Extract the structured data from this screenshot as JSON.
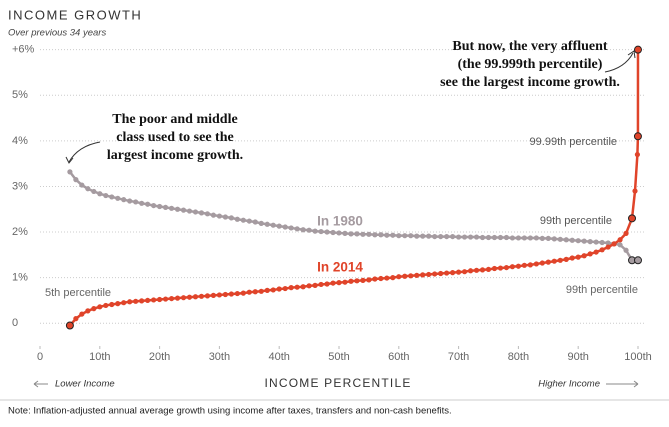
{
  "chart_data": {
    "type": "line",
    "title": "INCOME GROWTH",
    "subtitle": "Over previous 34 years",
    "x_label": "INCOME PERCENTILE",
    "x_left_note": "Lower Income",
    "x_right_note": "Higher Income",
    "note": "Note: Inflation-adjusted annual average growth using income after taxes, transfers and non-cash benefits.",
    "xlim": [
      0,
      100
    ],
    "ylim": [
      -0.5,
      6.3
    ],
    "xticks": [
      0,
      {
        "value": 10,
        "label": "10th"
      },
      {
        "value": 20,
        "label": "20th"
      },
      {
        "value": 30,
        "label": "30th"
      },
      {
        "value": 40,
        "label": "40th"
      },
      {
        "value": 50,
        "label": "50th"
      },
      {
        "value": 60,
        "label": "60th"
      },
      {
        "value": 70,
        "label": "70th"
      },
      {
        "value": 80,
        "label": "80th"
      },
      {
        "value": 90,
        "label": "90th"
      },
      {
        "value": 100,
        "label": "100th"
      }
    ],
    "yticks": [
      0,
      {
        "value": 1,
        "label": "1%"
      },
      {
        "value": 2,
        "label": "2%"
      },
      {
        "value": 3,
        "label": "3%"
      },
      {
        "value": 4,
        "label": "4%"
      },
      {
        "value": 5,
        "label": "5%"
      },
      {
        "value": 6,
        "label": "+6%"
      }
    ],
    "grid": true,
    "x": [
      5,
      6,
      7,
      8,
      9,
      10,
      11,
      12,
      13,
      14,
      15,
      16,
      17,
      18,
      19,
      20,
      21,
      22,
      23,
      24,
      25,
      26,
      27,
      28,
      29,
      30,
      31,
      32,
      33,
      34,
      35,
      36,
      37,
      38,
      39,
      40,
      41,
      42,
      43,
      44,
      45,
      46,
      47,
      48,
      49,
      50,
      51,
      52,
      53,
      54,
      55,
      56,
      57,
      58,
      59,
      60,
      61,
      62,
      63,
      64,
      65,
      66,
      67,
      68,
      69,
      70,
      71,
      72,
      73,
      74,
      75,
      76,
      77,
      78,
      79,
      80,
      81,
      82,
      83,
      84,
      85,
      86,
      87,
      88,
      89,
      90,
      91,
      92,
      93,
      94,
      95,
      96,
      97,
      98,
      99,
      99.5,
      99.9,
      99.99,
      99.999
    ],
    "series": [
      {
        "name": "In 1980",
        "color": "#a59ba0",
        "values": [
          3.32,
          3.15,
          3.03,
          2.95,
          2.89,
          2.84,
          2.8,
          2.77,
          2.74,
          2.71,
          2.68,
          2.66,
          2.63,
          2.61,
          2.58,
          2.56,
          2.54,
          2.52,
          2.5,
          2.48,
          2.46,
          2.44,
          2.42,
          2.4,
          2.37,
          2.35,
          2.33,
          2.31,
          2.28,
          2.26,
          2.24,
          2.22,
          2.19,
          2.17,
          2.15,
          2.13,
          2.11,
          2.09,
          2.07,
          2.05,
          2.04,
          2.02,
          2.01,
          2.0,
          1.99,
          1.98,
          1.97,
          1.96,
          1.96,
          1.95,
          1.95,
          1.94,
          1.94,
          1.93,
          1.93,
          1.92,
          1.92,
          1.92,
          1.91,
          1.91,
          1.91,
          1.9,
          1.9,
          1.9,
          1.9,
          1.89,
          1.89,
          1.89,
          1.89,
          1.88,
          1.88,
          1.88,
          1.88,
          1.88,
          1.87,
          1.87,
          1.87,
          1.87,
          1.87,
          1.86,
          1.86,
          1.85,
          1.84,
          1.83,
          1.82,
          1.81,
          1.8,
          1.79,
          1.78,
          1.77,
          1.76,
          1.74,
          1.72,
          1.6,
          1.38,
          null,
          null,
          null,
          1.38
        ]
      },
      {
        "name": "In 2014",
        "color": "#e0442a",
        "values": [
          -0.05,
          0.1,
          0.2,
          0.27,
          0.32,
          0.36,
          0.39,
          0.41,
          0.43,
          0.45,
          0.47,
          0.48,
          0.49,
          0.5,
          0.51,
          0.52,
          0.53,
          0.54,
          0.55,
          0.56,
          0.57,
          0.58,
          0.59,
          0.6,
          0.61,
          0.62,
          0.63,
          0.64,
          0.65,
          0.66,
          0.68,
          0.69,
          0.7,
          0.72,
          0.73,
          0.75,
          0.76,
          0.78,
          0.79,
          0.8,
          0.82,
          0.83,
          0.85,
          0.86,
          0.88,
          0.89,
          0.9,
          0.92,
          0.93,
          0.94,
          0.95,
          0.97,
          0.98,
          0.99,
          1.0,
          1.02,
          1.03,
          1.04,
          1.05,
          1.06,
          1.07,
          1.08,
          1.09,
          1.1,
          1.11,
          1.12,
          1.13,
          1.15,
          1.16,
          1.17,
          1.18,
          1.2,
          1.21,
          1.22,
          1.24,
          1.25,
          1.27,
          1.28,
          1.3,
          1.32,
          1.34,
          1.36,
          1.38,
          1.4,
          1.43,
          1.45,
          1.48,
          1.52,
          1.56,
          1.61,
          1.67,
          1.74,
          1.83,
          1.97,
          2.3,
          2.9,
          3.7,
          4.1,
          6.0
        ]
      }
    ],
    "annotations": [
      {
        "lines": [
          "The poor and middle",
          "class used to see the",
          "largest income growth."
        ]
      },
      {
        "lines": [
          "But now, the very affluent",
          "(the 99.999th percentile)",
          "see the largest income growth."
        ]
      }
    ],
    "point_labels": [
      "5th percentile",
      "99th percentile",
      "99.99th percentile",
      "99th percentile"
    ]
  }
}
